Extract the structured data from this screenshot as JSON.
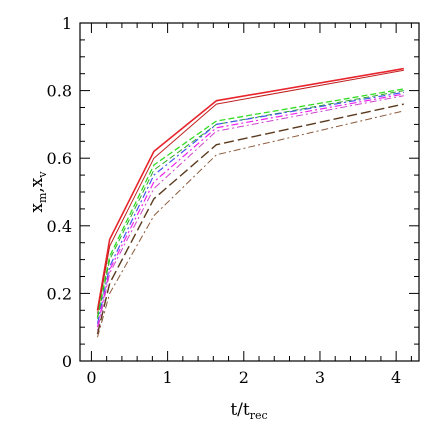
{
  "chart_data": {
    "type": "line",
    "xlabel": {
      "main": "t/t",
      "sub": "rec"
    },
    "ylabel": {
      "part1": "x",
      "sub1": "m",
      "sep": ",",
      "part2": "x",
      "sub2": "v"
    },
    "xlim": [
      -0.15,
      4.3
    ],
    "ylim": [
      0,
      1
    ],
    "xticks": [
      0,
      1,
      2,
      3,
      4
    ],
    "xtick_labels": [
      "0",
      "1",
      "2",
      "3",
      "4"
    ],
    "yticks": [
      0,
      0.2,
      0.4,
      0.6,
      0.8,
      1
    ],
    "ytick_labels": [
      "0",
      "0.2",
      "0.4",
      "0.6",
      "0.8",
      "1"
    ],
    "grid": false,
    "x": [
      0.08,
      0.24,
      0.82,
      1.64,
      4.1
    ],
    "series": [
      {
        "values": [
          0.15,
          0.36,
          0.62,
          0.77,
          0.865
        ],
        "color": "#e8242c",
        "style": "solid",
        "width": 1.6
      },
      {
        "values": [
          0.14,
          0.34,
          0.6,
          0.76,
          0.86
        ],
        "color": "#c02020",
        "style": "solid",
        "width": 1.0
      },
      {
        "values": [
          0.13,
          0.31,
          0.58,
          0.71,
          0.805
        ],
        "color": "#33dd22",
        "style": "dashed",
        "width": 1.3
      },
      {
        "values": [
          0.125,
          0.3,
          0.565,
          0.7,
          0.8
        ],
        "color": "#2eaa28",
        "style": "dashed",
        "width": 1.0
      },
      {
        "values": [
          0.11,
          0.28,
          0.55,
          0.7,
          0.795
        ],
        "color": "#4455ee",
        "style": "dashdot",
        "width": 1.2
      },
      {
        "values": [
          0.1,
          0.27,
          0.53,
          0.69,
          0.79
        ],
        "color": "#ee22ee",
        "style": "dashdot",
        "width": 1.2
      },
      {
        "values": [
          0.09,
          0.26,
          0.51,
          0.68,
          0.785
        ],
        "color": "#cc44cc",
        "style": "dotdash",
        "width": 1.0
      },
      {
        "values": [
          0.08,
          0.23,
          0.48,
          0.64,
          0.76
        ],
        "color": "#5a3a1e",
        "style": "longdash",
        "width": 1.4
      },
      {
        "values": [
          0.07,
          0.2,
          0.43,
          0.61,
          0.74
        ],
        "color": "#8a5a3a",
        "style": "dashdot",
        "width": 1.0
      }
    ]
  }
}
